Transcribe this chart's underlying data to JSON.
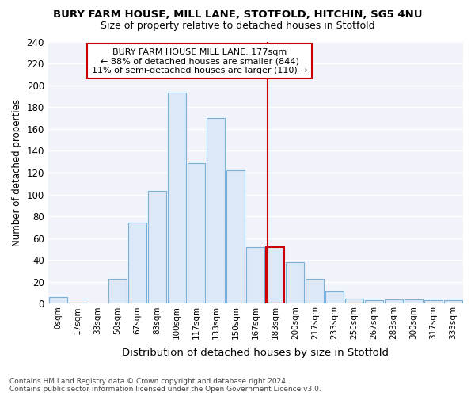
{
  "title1": "BURY FARM HOUSE, MILL LANE, STOTFOLD, HITCHIN, SG5 4NU",
  "title2": "Size of property relative to detached houses in Stotfold",
  "xlabel": "Distribution of detached houses by size in Stotfold",
  "ylabel": "Number of detached properties",
  "categories": [
    "0sqm",
    "17sqm",
    "33sqm",
    "50sqm",
    "67sqm",
    "83sqm",
    "100sqm",
    "117sqm",
    "133sqm",
    "150sqm",
    "167sqm",
    "183sqm",
    "200sqm",
    "217sqm",
    "233sqm",
    "250sqm",
    "267sqm",
    "283sqm",
    "300sqm",
    "317sqm",
    "333sqm"
  ],
  "values": [
    6,
    1,
    0,
    23,
    74,
    103,
    193,
    129,
    170,
    122,
    52,
    52,
    38,
    23,
    11,
    5,
    3,
    4,
    4,
    3,
    3
  ],
  "bar_facecolor": "#dce8f5",
  "bar_edgecolor": "#7ab0d8",
  "highlight_bar_index": 11,
  "highlight_bar_edgecolor": "#cc0000",
  "vline_color": "#cc0000",
  "vline_x": 10.62,
  "annotation_line1": "BURY FARM HOUSE MILL LANE: 177sqm",
  "annotation_line2": "← 88% of detached houses are smaller (844)",
  "annotation_line3": "11% of semi-detached houses are larger (110) →",
  "annotation_box_edgecolor": "#cc0000",
  "ylim": [
    0,
    240
  ],
  "yticks": [
    0,
    20,
    40,
    60,
    80,
    100,
    120,
    140,
    160,
    180,
    200,
    220,
    240
  ],
  "fig_facecolor": "#ffffff",
  "axes_facecolor": "#f0f4fa",
  "grid_color": "#ffffff",
  "footer1": "Contains HM Land Registry data © Crown copyright and database right 2024.",
  "footer2": "Contains public sector information licensed under the Open Government Licence v3.0."
}
